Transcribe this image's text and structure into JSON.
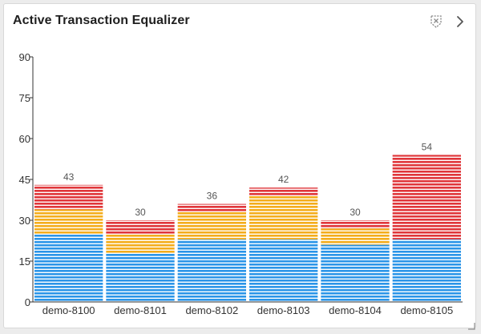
{
  "widget": {
    "title": "Active Transaction Equalizer",
    "icons": {
      "filter": "filter-off-icon",
      "next": "chevron-right-icon",
      "resize": "resize-handle-icon"
    }
  },
  "chart_data": {
    "type": "bar",
    "stacked": true,
    "title": "Active Transaction Equalizer",
    "xlabel": "",
    "ylabel": "",
    "ylim": [
      0,
      90
    ],
    "yticks": [
      0,
      15,
      30,
      45,
      60,
      75,
      90
    ],
    "grid": false,
    "legend": "none",
    "categories": [
      "demo-8100",
      "demo-8101",
      "demo-8102",
      "demo-8103",
      "demo-8104",
      "demo-8105"
    ],
    "totals": [
      43,
      30,
      36,
      42,
      30,
      54
    ],
    "series": [
      {
        "color": "#2b95e8",
        "values": [
          25,
          18,
          23,
          23,
          21,
          23
        ]
      },
      {
        "color": "#f4ad1c",
        "values": [
          9,
          7,
          10,
          16,
          6,
          0
        ]
      },
      {
        "color": "#e0363a",
        "values": [
          9,
          5,
          3,
          3,
          3,
          31
        ]
      }
    ]
  }
}
